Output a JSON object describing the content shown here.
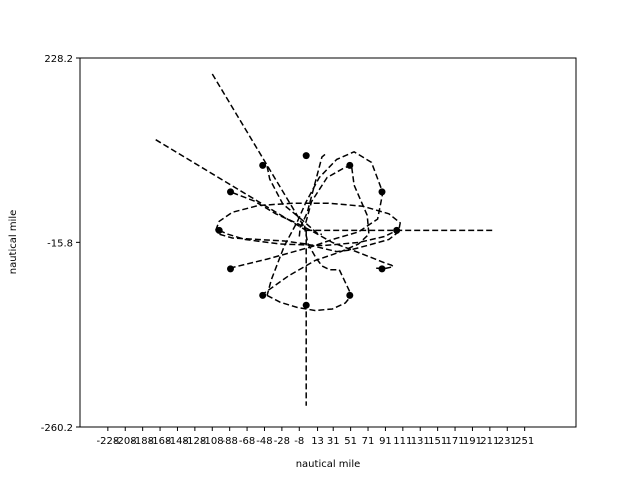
{
  "chart_data": {
    "type": "line",
    "xlabel": "nautical mile",
    "ylabel": "nautical mile",
    "xlim": [
      -260,
      310
    ],
    "ylim": [
      -260.2,
      228.2
    ],
    "x_ticks": [
      -228,
      -208,
      -188,
      -168,
      -148,
      -128,
      -108,
      -88,
      -68,
      -48,
      -28,
      -8,
      13,
      31,
      51,
      71,
      91,
      111,
      131,
      151,
      171,
      191,
      211,
      231,
      251
    ],
    "x_tick_labels": [
      "-228",
      "-208",
      "-188",
      "-168",
      "-148",
      "-128",
      "-108",
      "-88",
      "-68",
      "-48",
      "-28",
      "-8",
      "13",
      "31",
      "51",
      "71",
      "91",
      "111",
      "131",
      "151",
      "171",
      "191",
      "211",
      "231",
      "251"
    ],
    "y_ticks": [
      -260.2,
      -15.8,
      228.2
    ],
    "y_tick_labels": [
      "-260.2",
      "-15.8",
      "228.2"
    ],
    "line_style": "dashed",
    "color": "#000000",
    "series": [
      {
        "x": [
          -108,
          0
        ],
        "y": [
          207,
          0
        ]
      },
      {
        "x": [
          -173,
          0
        ],
        "y": [
          120,
          0
        ]
      },
      {
        "x": [
          0,
          215
        ],
        "y": [
          0,
          0
        ]
      },
      {
        "x": [
          0,
          0
        ],
        "y": [
          0,
          -232
        ]
      },
      {
        "x": [
          -8,
          -7,
          1,
          9,
          18,
          22
        ],
        "y": [
          -8,
          4,
          23,
          58,
          97,
          101
        ]
      },
      {
        "x": [
          52,
          44,
          24,
          6,
          -2,
          2,
          11,
          18,
          27,
          38,
          52
        ],
        "y": [
          86,
          83,
          70,
          38,
          4,
          -18,
          -36,
          -47,
          -52,
          -52,
          -86
        ]
      },
      {
        "x": [
          -45,
          -42,
          -27,
          -7,
          8,
          14,
          18
        ],
        "y": [
          85,
          68,
          35,
          16,
          1,
          -5,
          -5
        ]
      },
      {
        "x": [
          -85,
          -60,
          -35,
          -10,
          10,
          30,
          55,
          75,
          90,
          98,
          100,
          92,
          78
        ],
        "y": [
          50,
          39,
          22,
          9,
          -3,
          -16,
          -27,
          -36,
          -43,
          -46,
          -48,
          -50,
          -50
        ]
      },
      {
        "x": [
          -100,
          -90,
          -70,
          -30,
          20,
          60,
          90,
          104
        ],
        "y": [
          0,
          -5,
          -12,
          -18,
          -20,
          -16,
          -8,
          0
        ]
      },
      {
        "x": [
          -104,
          -100,
          -85,
          -55,
          -15,
          25,
          65,
          95,
          108,
          106,
          95,
          70,
          50,
          35,
          20,
          0,
          -25,
          -55,
          -85,
          -100,
          -104
        ],
        "y": [
          0,
          12,
          24,
          33,
          36,
          36,
          32,
          22,
          10,
          -2,
          -12,
          -20,
          -26,
          -28,
          -24,
          -18,
          -14,
          -12,
          -10,
          -5,
          0
        ]
      },
      {
        "x": [
          -88,
          -70,
          -45,
          -20,
          5,
          30,
          60,
          82,
          88,
          75,
          55,
          35,
          15,
          0,
          -10,
          -25,
          -40,
          -45
        ],
        "y": [
          -50,
          -45,
          -38,
          -30,
          -22,
          -12,
          -2,
          15,
          50,
          90,
          104,
          94,
          70,
          38,
          12,
          -20,
          -65,
          -86
        ]
      },
      {
        "x": [
          -45,
          -30,
          -10,
          10,
          30,
          45,
          52
        ],
        "y": [
          -86,
          -95,
          -102,
          -106,
          -104,
          -96,
          -86
        ]
      },
      {
        "x": [
          -52,
          -20,
          10,
          40,
          60,
          72,
          70,
          55,
          52
        ],
        "y": [
          -86,
          -60,
          -40,
          -28,
          -18,
          -5,
          20,
          60,
          86
        ]
      }
    ],
    "markers": [
      {
        "x": -100,
        "y": 0
      },
      {
        "x": 104,
        "y": 0
      },
      {
        "x": -87,
        "y": 51
      },
      {
        "x": -50,
        "y": 86
      },
      {
        "x": 0,
        "y": 99
      },
      {
        "x": 50,
        "y": 86
      },
      {
        "x": 87,
        "y": 51
      },
      {
        "x": -87,
        "y": -51
      },
      {
        "x": -50,
        "y": -86
      },
      {
        "x": 0,
        "y": -99
      },
      {
        "x": 50,
        "y": -86
      },
      {
        "x": 87,
        "y": -51
      }
    ]
  }
}
